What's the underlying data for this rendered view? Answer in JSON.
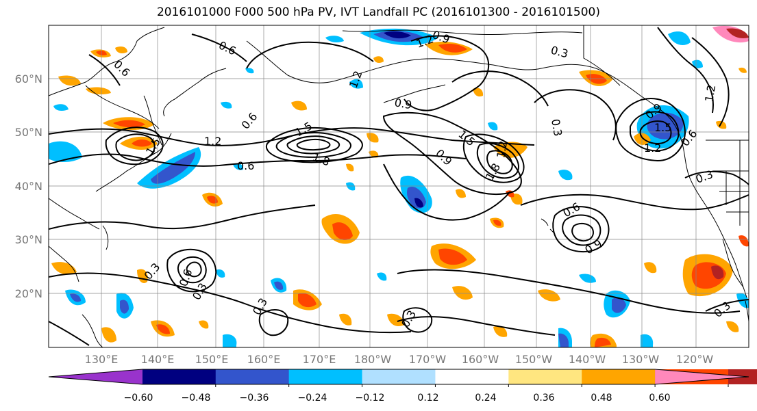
{
  "title": "2016101000 F000 500 hPa PV, IVT Landfall PC (2016101300 - 2016101500)",
  "lat_labels": [
    "60°N",
    "50°N",
    "40°N",
    "30°N",
    "20°N"
  ],
  "lon_labels": [
    "130°E",
    "140°E",
    "150°E",
    "160°E",
    "170°E",
    "180°W",
    "170°W",
    "160°W",
    "150°W",
    "140°W",
    "130°W",
    "120°W"
  ],
  "colorbar": {
    "colors": [
      "#9933cc",
      "#000080",
      "#3355cc",
      "#00bfff",
      "#b0e0ff",
      "#ffffff",
      "#ffe680",
      "#ffa500",
      "#ff4500",
      "#b22222",
      "#ff88bb"
    ],
    "tick_labels": [
      "−0.60",
      "−0.48",
      "−0.36",
      "−0.24",
      "−0.12",
      "0.12",
      "0.24",
      "0.36",
      "0.48",
      "0.60"
    ]
  },
  "contour_labels": [
    "0.6",
    "0.6",
    "1.5",
    "1.2",
    "0.6",
    "1.5",
    "1.8",
    "0.6",
    "0.9",
    "1.2",
    "0.9",
    "1.5",
    "1.2",
    "1.8",
    "1.2",
    "0.9",
    "0.3",
    "0.3",
    "0.9",
    "1.2",
    "1.5",
    "1.2",
    "0.6",
    "0.3",
    "0.6",
    "0.9",
    "0.3",
    "0.6",
    "0.3",
    "0.3",
    "0.3",
    "0.3"
  ]
}
